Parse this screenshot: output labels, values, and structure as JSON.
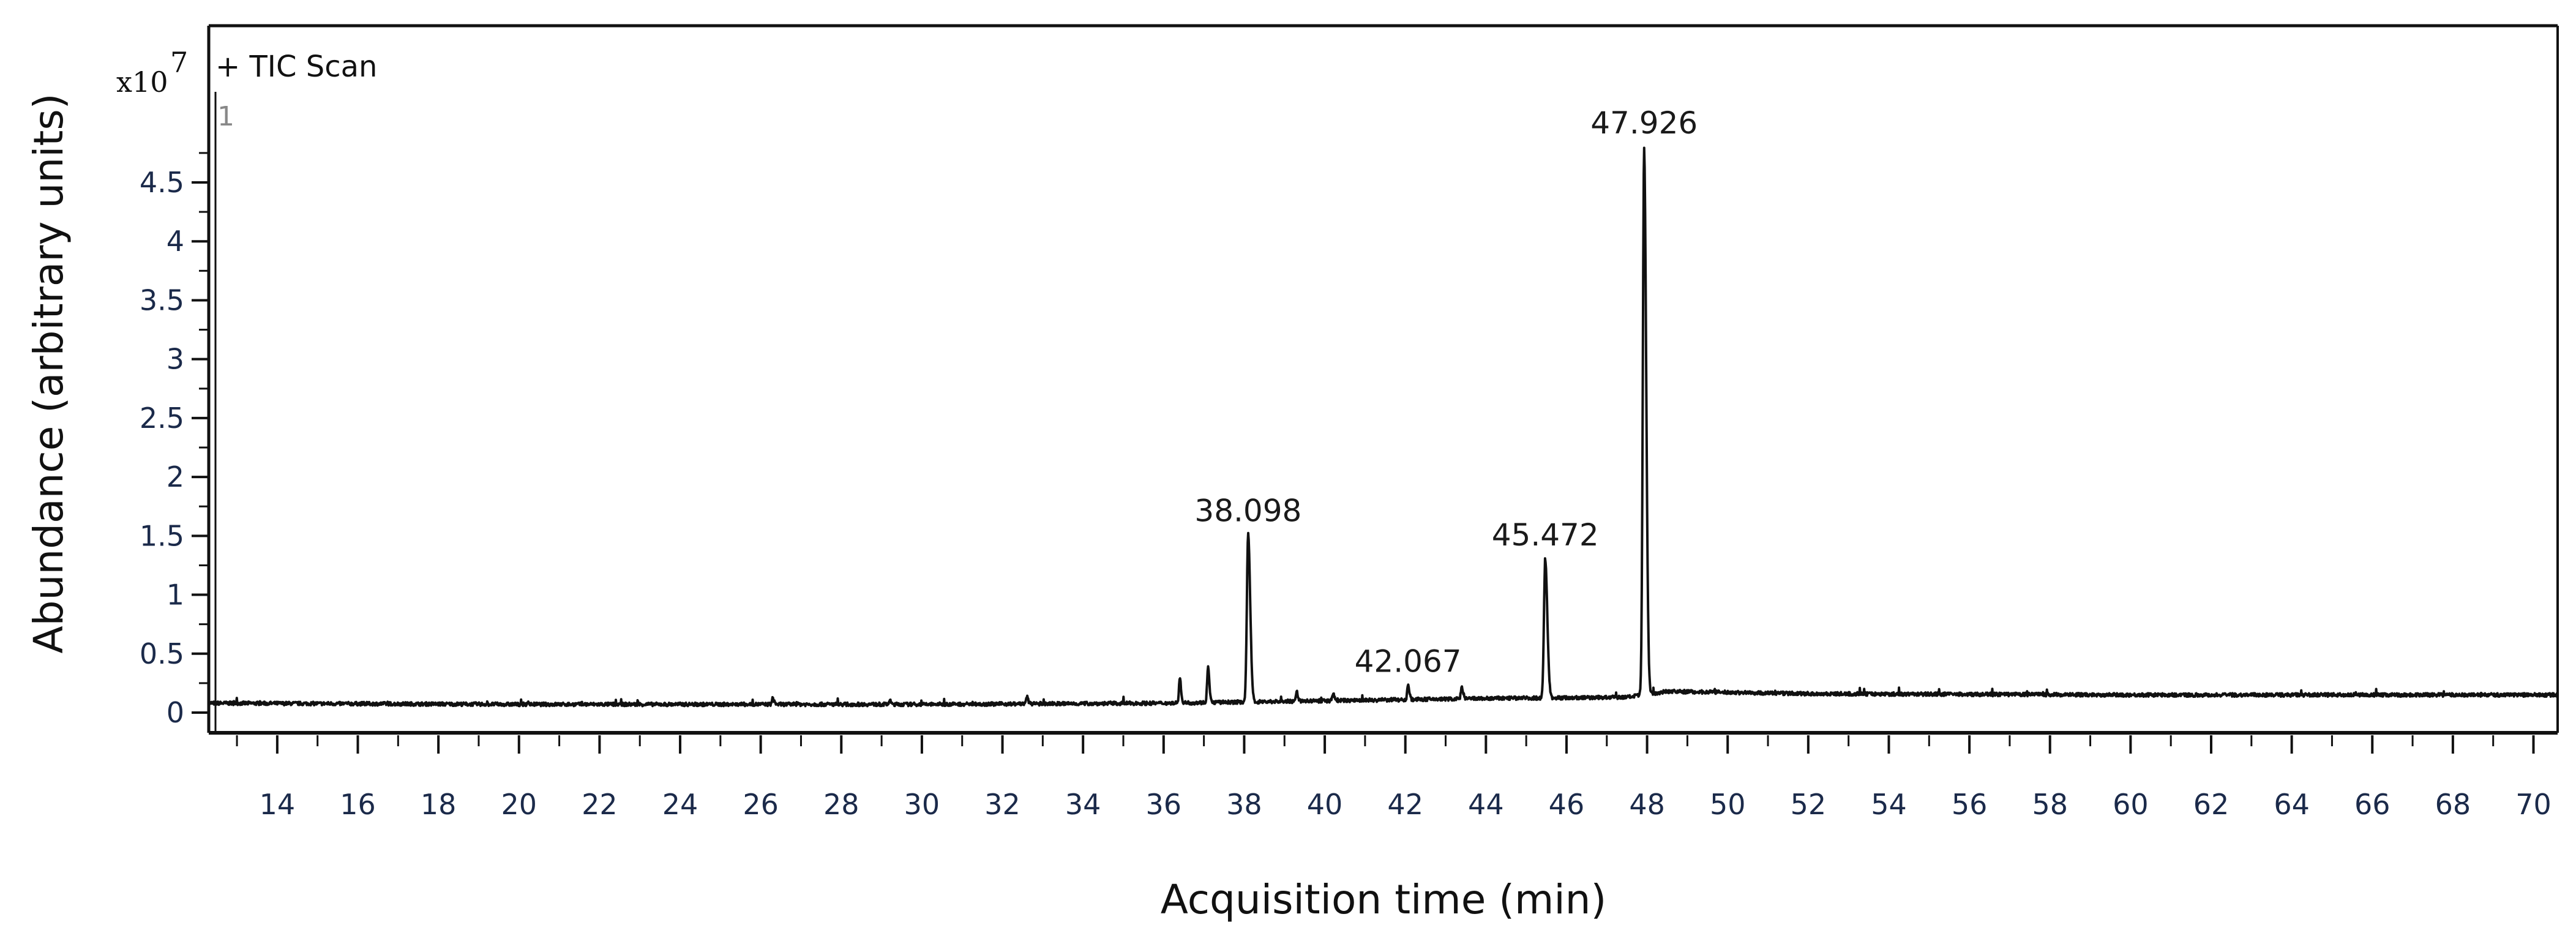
{
  "chart_data": {
    "type": "line",
    "legend": "+ TIC Scan",
    "scan_index": "1",
    "multiplier_base": "x10",
    "multiplier_exp": "7",
    "xlabel": "Acquisition time (min)",
    "ylabel": "Abundance (arbitrary units)",
    "xlim": [
      12.3,
      70.6
    ],
    "ylim": [
      -0.1,
      5.2
    ],
    "x_ticks": [
      14,
      16,
      18,
      20,
      22,
      24,
      26,
      28,
      30,
      32,
      34,
      36,
      38,
      40,
      42,
      44,
      46,
      48,
      50,
      52,
      54,
      56,
      58,
      60,
      62,
      64,
      66,
      68,
      70
    ],
    "y_ticks": [
      0,
      0.5,
      1,
      1.5,
      2,
      2.5,
      3,
      3.5,
      4,
      4.5
    ],
    "grid": false,
    "baseline": [
      [
        12.3,
        0.08
      ],
      [
        20,
        0.07
      ],
      [
        30,
        0.07
      ],
      [
        36,
        0.08
      ],
      [
        40,
        0.1
      ],
      [
        44,
        0.12
      ],
      [
        47.5,
        0.13
      ],
      [
        48.5,
        0.18
      ],
      [
        52,
        0.16
      ],
      [
        60,
        0.15
      ],
      [
        70.6,
        0.15
      ]
    ],
    "peaks": [
      {
        "rt": 26.3,
        "height": 0.05
      },
      {
        "rt": 29.2,
        "height": 0.03
      },
      {
        "rt": 32.6,
        "height": 0.06
      },
      {
        "rt": 36.4,
        "height": 0.2
      },
      {
        "rt": 37.1,
        "height": 0.3
      },
      {
        "rt": 38.098,
        "height": 1.42,
        "label": "38.098"
      },
      {
        "rt": 39.3,
        "height": 0.08
      },
      {
        "rt": 40.2,
        "height": 0.06
      },
      {
        "rt": 42.067,
        "height": 0.12,
        "label": "42.067"
      },
      {
        "rt": 43.4,
        "height": 0.1
      },
      {
        "rt": 45.472,
        "height": 1.18,
        "label": "45.472"
      },
      {
        "rt": 47.926,
        "height": 4.65,
        "label": "47.926"
      }
    ]
  }
}
